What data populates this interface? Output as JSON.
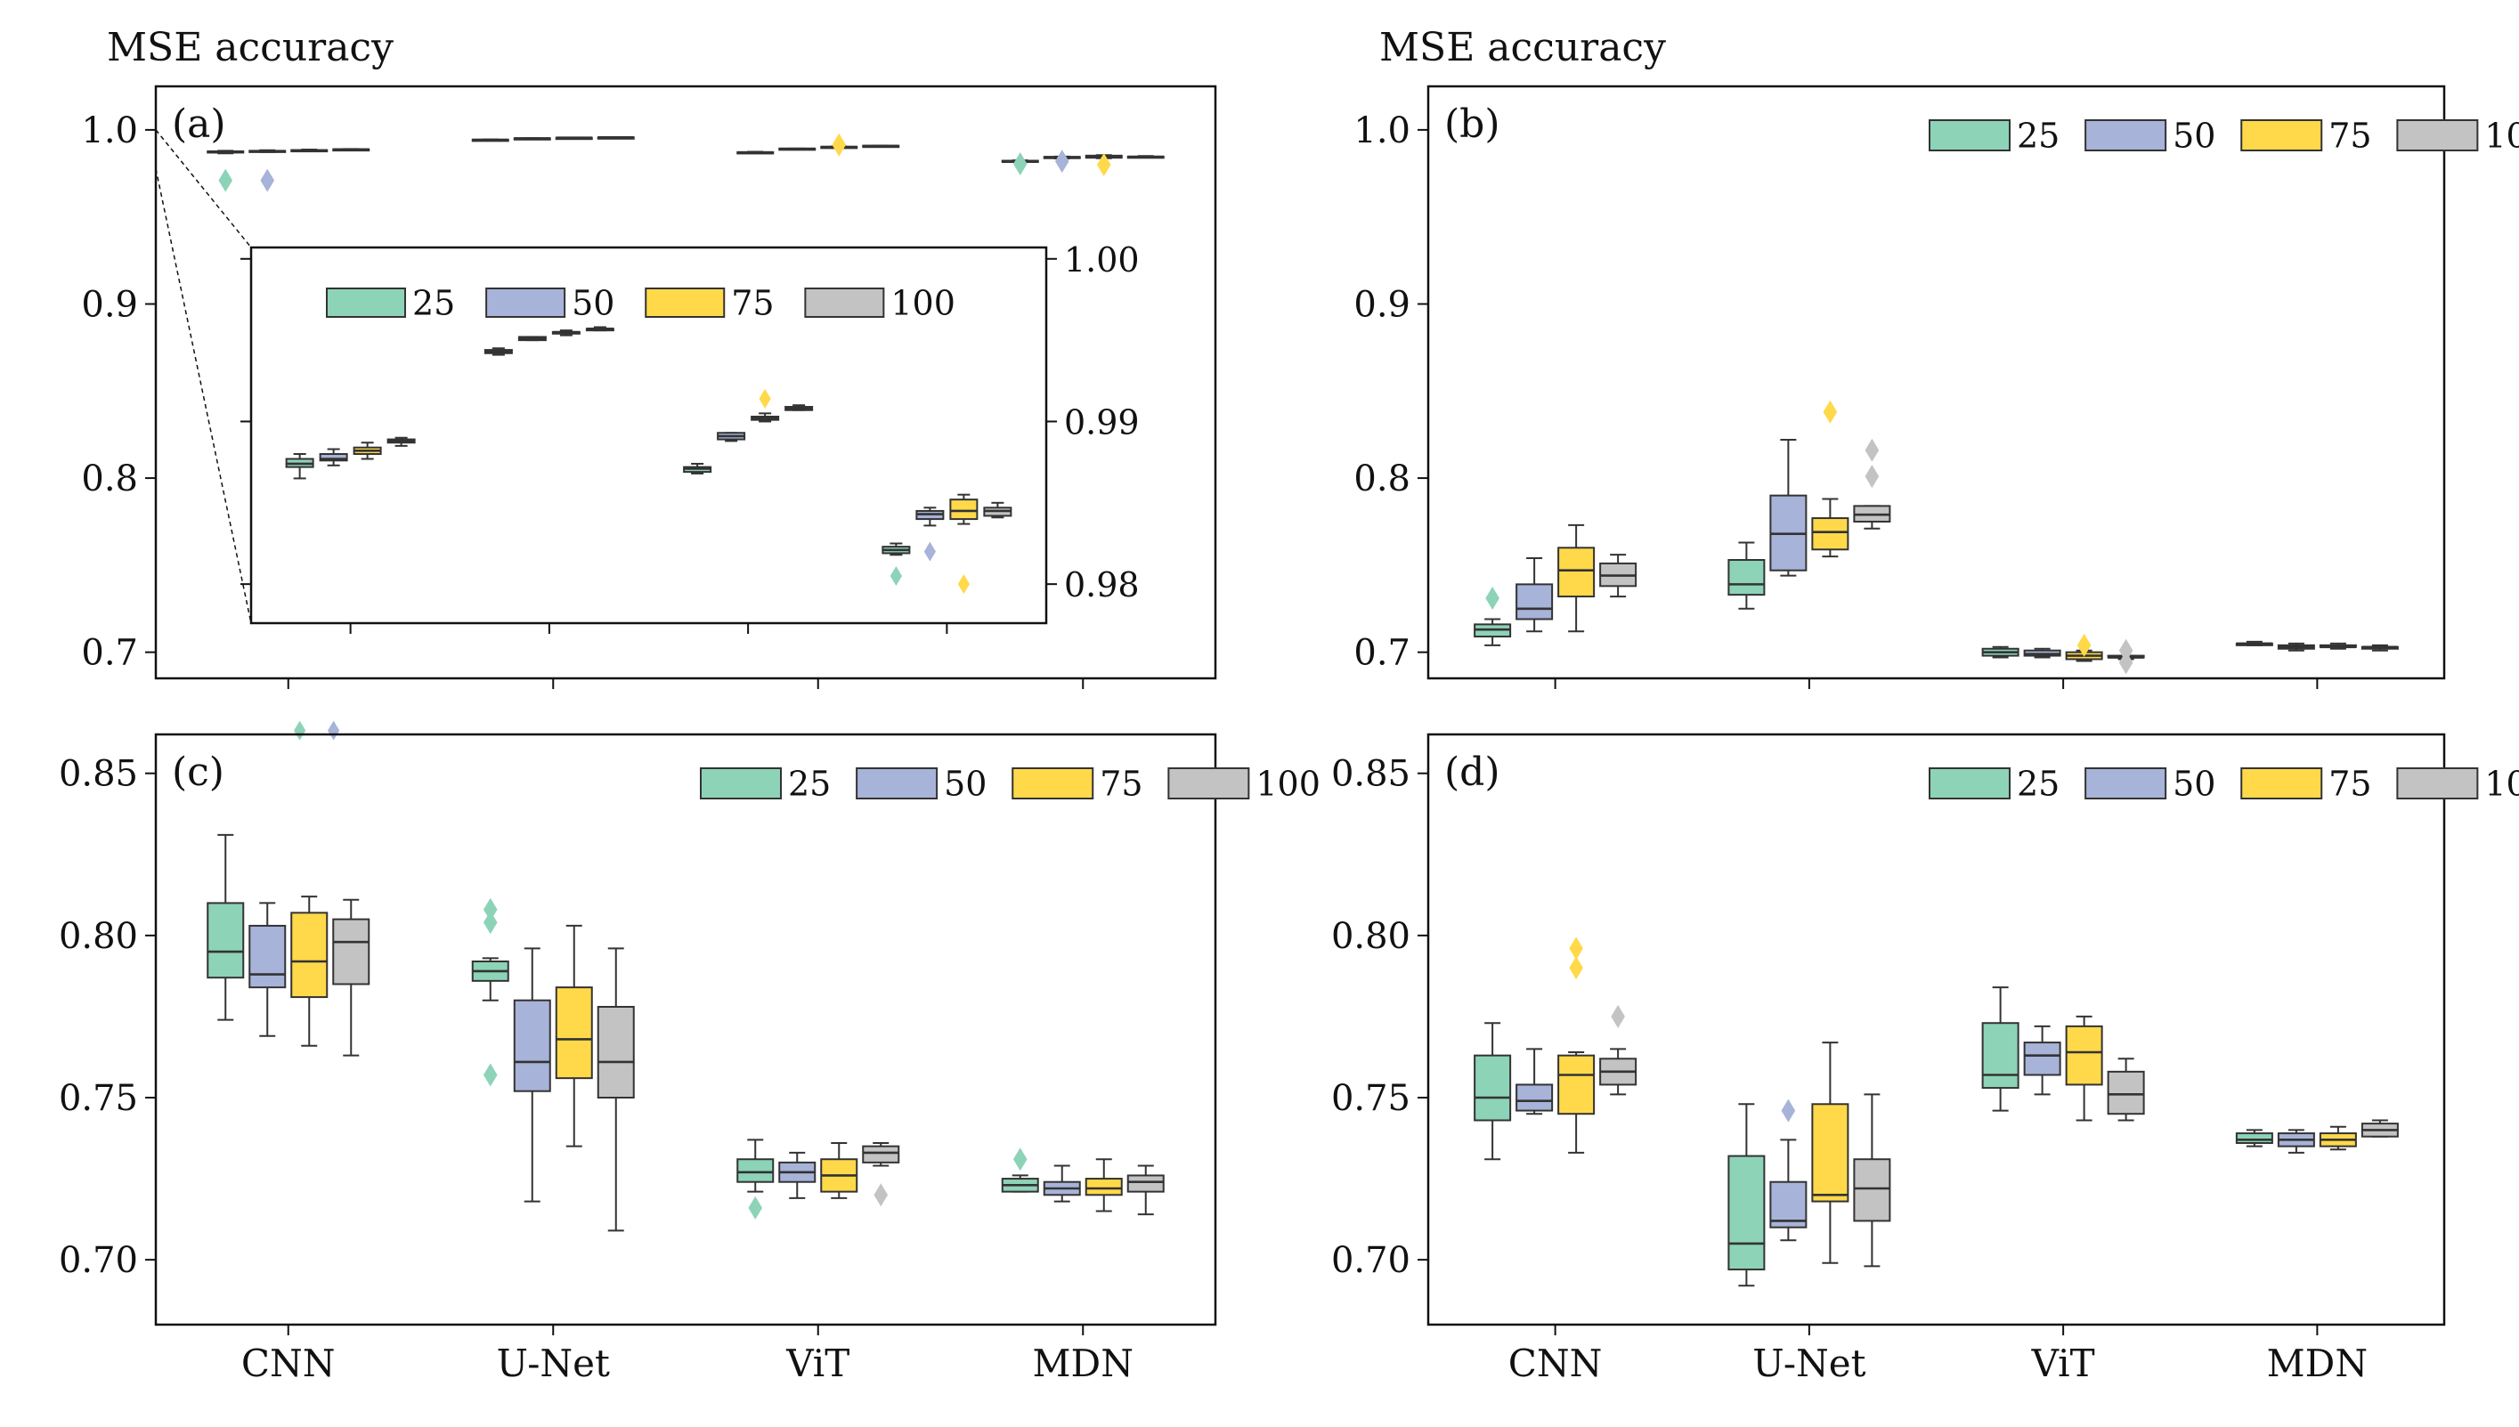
{
  "figure": {
    "ylabel": "MSE accuracy"
  },
  "legend_labels": [
    "25",
    "50",
    "75",
    "100"
  ],
  "colors": {
    "25": "#8dd3b8",
    "50": "#a7b3d9",
    "75": "#ffd94a",
    "100": "#c3c3c3",
    "edge": "#333333"
  },
  "chart_data": [
    {
      "id": "a",
      "panel_label": "(a)",
      "type": "box",
      "ylabel": "MSE accuracy",
      "ylim": [
        0.685,
        1.025
      ],
      "yticks": [
        0.7,
        0.8,
        0.9,
        1.0
      ],
      "ytick_labels": [
        "0.7",
        "0.8",
        "0.9",
        "1.0"
      ],
      "categories": [
        "CNN",
        "U-Net",
        "ViT",
        "MDN"
      ],
      "show_xticklabels": false,
      "legend": "inset",
      "series": [
        {
          "name": "25",
          "boxes": [
            {
              "whislo": 0.9865,
              "q1": 0.9872,
              "med": 0.9874,
              "q3": 0.9877,
              "whishi": 0.988,
              "fliers": [
                0.971
              ]
            },
            {
              "whislo": 0.9941,
              "q1": 0.9942,
              "med": 0.9943,
              "q3": 0.9944,
              "whishi": 0.9945,
              "fliers": []
            },
            {
              "whislo": 0.9868,
              "q1": 0.9869,
              "med": 0.9871,
              "q3": 0.9872,
              "whishi": 0.9874,
              "fliers": []
            },
            {
              "whislo": 0.9818,
              "q1": 0.9819,
              "med": 0.9821,
              "q3": 0.9823,
              "whishi": 0.9825,
              "fliers": [
                0.9805
              ]
            }
          ]
        },
        {
          "name": "50",
          "boxes": [
            {
              "whislo": 0.9873,
              "q1": 0.9876,
              "med": 0.9877,
              "q3": 0.988,
              "whishi": 0.9883,
              "fliers": [
                0.971
              ]
            },
            {
              "whislo": 0.995,
              "q1": 0.995,
              "med": 0.9951,
              "q3": 0.9952,
              "whishi": 0.9952,
              "fliers": []
            },
            {
              "whislo": 0.9888,
              "q1": 0.9889,
              "med": 0.9891,
              "q3": 0.9893,
              "whishi": 0.9893,
              "fliers": []
            },
            {
              "whislo": 0.9836,
              "q1": 0.984,
              "med": 0.9843,
              "q3": 0.9845,
              "whishi": 0.9847,
              "fliers": [
                0.982
              ]
            }
          ]
        },
        {
          "name": "75",
          "boxes": [
            {
              "whislo": 0.9877,
              "q1": 0.988,
              "med": 0.9882,
              "q3": 0.9884,
              "whishi": 0.9887,
              "fliers": []
            },
            {
              "whislo": 0.9953,
              "q1": 0.9954,
              "med": 0.9955,
              "q3": 0.9955,
              "whishi": 0.9956,
              "fliers": []
            },
            {
              "whislo": 0.99,
              "q1": 0.9901,
              "med": 0.9902,
              "q3": 0.9903,
              "whishi": 0.9905,
              "fliers": [
                0.9914
              ]
            },
            {
              "whislo": 0.9837,
              "q1": 0.984,
              "med": 0.9845,
              "q3": 0.9852,
              "whishi": 0.9855,
              "fliers": [
                0.98
              ]
            }
          ]
        },
        {
          "name": "100",
          "boxes": [
            {
              "whislo": 0.9885,
              "q1": 0.9887,
              "med": 0.9888,
              "q3": 0.9889,
              "whishi": 0.989,
              "fliers": []
            },
            {
              "whislo": 0.9956,
              "q1": 0.9956,
              "med": 0.9957,
              "q3": 0.9957,
              "whishi": 0.9958,
              "fliers": []
            },
            {
              "whislo": 0.9907,
              "q1": 0.9907,
              "med": 0.9908,
              "q3": 0.9909,
              "whishi": 0.991,
              "fliers": []
            },
            {
              "whislo": 0.9841,
              "q1": 0.9842,
              "med": 0.9845,
              "q3": 0.9847,
              "whishi": 0.985,
              "fliers": []
            }
          ]
        }
      ],
      "inset": {
        "ylim": [
          0.9776,
          1.0007
        ],
        "yticks": [
          0.98,
          0.99,
          1.0
        ],
        "ytick_labels": [
          "0.98",
          "0.99",
          "1.00"
        ],
        "ytick_side": "right",
        "zoom_from": 1.0,
        "zoom_to": 0.9776
      }
    },
    {
      "id": "b",
      "panel_label": "(b)",
      "type": "box",
      "ylabel": "MSE accuracy",
      "ylim": [
        0.685,
        1.025
      ],
      "yticks": [
        0.7,
        0.8,
        0.9,
        1.0
      ],
      "ytick_labels": [
        "0.7",
        "0.8",
        "0.9",
        "1.0"
      ],
      "categories": [
        "CNN",
        "U-Net",
        "ViT",
        "MDN"
      ],
      "show_xticklabels": false,
      "legend": "upper right",
      "series": [
        {
          "name": "25",
          "boxes": [
            {
              "whislo": 0.704,
              "q1": 0.709,
              "med": 0.713,
              "q3": 0.716,
              "whishi": 0.719,
              "fliers": [
                0.731
              ]
            },
            {
              "whislo": 0.725,
              "q1": 0.733,
              "med": 0.739,
              "q3": 0.753,
              "whishi": 0.763,
              "fliers": []
            },
            {
              "whislo": 0.697,
              "q1": 0.698,
              "med": 0.7,
              "q3": 0.702,
              "whishi": 0.703,
              "fliers": []
            },
            {
              "whislo": 0.704,
              "q1": 0.704,
              "med": 0.705,
              "q3": 0.705,
              "whishi": 0.706,
              "fliers": []
            }
          ]
        },
        {
          "name": "50",
          "boxes": [
            {
              "whislo": 0.712,
              "q1": 0.719,
              "med": 0.725,
              "q3": 0.739,
              "whishi": 0.754,
              "fliers": []
            },
            {
              "whislo": 0.744,
              "q1": 0.747,
              "med": 0.768,
              "q3": 0.79,
              "whishi": 0.822,
              "fliers": []
            },
            {
              "whislo": 0.697,
              "q1": 0.698,
              "med": 0.699,
              "q3": 0.701,
              "whishi": 0.702,
              "fliers": []
            },
            {
              "whislo": 0.701,
              "q1": 0.702,
              "med": 0.703,
              "q3": 0.704,
              "whishi": 0.705,
              "fliers": []
            }
          ]
        },
        {
          "name": "75",
          "boxes": [
            {
              "whislo": 0.712,
              "q1": 0.732,
              "med": 0.747,
              "q3": 0.76,
              "whishi": 0.773,
              "fliers": []
            },
            {
              "whislo": 0.755,
              "q1": 0.759,
              "med": 0.769,
              "q3": 0.777,
              "whishi": 0.788,
              "fliers": [
                0.838
              ]
            },
            {
              "whislo": 0.695,
              "q1": 0.696,
              "med": 0.698,
              "q3": 0.7,
              "whishi": 0.701,
              "fliers": [
                0.704
              ]
            },
            {
              "whislo": 0.702,
              "q1": 0.703,
              "med": 0.703,
              "q3": 0.704,
              "whishi": 0.705,
              "fliers": []
            }
          ]
        },
        {
          "name": "100",
          "boxes": [
            {
              "whislo": 0.732,
              "q1": 0.738,
              "med": 0.744,
              "q3": 0.751,
              "whishi": 0.756,
              "fliers": []
            },
            {
              "whislo": 0.771,
              "q1": 0.775,
              "med": 0.779,
              "q3": 0.784,
              "whishi": 0.784,
              "fliers": [
                0.801,
                0.816
              ]
            },
            {
              "whislo": 0.696,
              "q1": 0.697,
              "med": 0.697,
              "q3": 0.698,
              "whishi": 0.698,
              "fliers": [
                0.694,
                0.701
              ]
            },
            {
              "whislo": 0.701,
              "q1": 0.702,
              "med": 0.703,
              "q3": 0.703,
              "whishi": 0.704,
              "fliers": []
            }
          ]
        }
      ]
    },
    {
      "id": "c",
      "panel_label": "(c)",
      "type": "box",
      "ylabel": "",
      "ylim": [
        0.68,
        0.862
      ],
      "yticks": [
        0.7,
        0.75,
        0.8,
        0.85
      ],
      "ytick_labels": [
        "0.70",
        "0.75",
        "0.80",
        "0.85"
      ],
      "categories": [
        "CNN",
        "U-Net",
        "ViT",
        "MDN"
      ],
      "show_xticklabels": true,
      "legend": "upper right",
      "series": [
        {
          "name": "25",
          "boxes": [
            {
              "whislo": 0.774,
              "q1": 0.787,
              "med": 0.795,
              "q3": 0.81,
              "whishi": 0.831,
              "fliers": []
            },
            {
              "whislo": 0.78,
              "q1": 0.786,
              "med": 0.789,
              "q3": 0.792,
              "whishi": 0.793,
              "fliers": [
                0.757,
                0.804,
                0.808
              ]
            },
            {
              "whislo": 0.721,
              "q1": 0.724,
              "med": 0.727,
              "q3": 0.731,
              "whishi": 0.737,
              "fliers": [
                0.716
              ]
            },
            {
              "whislo": 0.721,
              "q1": 0.721,
              "med": 0.723,
              "q3": 0.725,
              "whishi": 0.726,
              "fliers": [
                0.731
              ]
            }
          ]
        },
        {
          "name": "50",
          "boxes": [
            {
              "whislo": 0.769,
              "q1": 0.784,
              "med": 0.788,
              "q3": 0.803,
              "whishi": 0.81,
              "fliers": []
            },
            {
              "whislo": 0.718,
              "q1": 0.752,
              "med": 0.761,
              "q3": 0.78,
              "whishi": 0.796,
              "fliers": []
            },
            {
              "whislo": 0.719,
              "q1": 0.724,
              "med": 0.727,
              "q3": 0.73,
              "whishi": 0.733,
              "fliers": []
            },
            {
              "whislo": 0.718,
              "q1": 0.72,
              "med": 0.722,
              "q3": 0.724,
              "whishi": 0.729,
              "fliers": []
            }
          ]
        },
        {
          "name": "75",
          "boxes": [
            {
              "whislo": 0.766,
              "q1": 0.781,
              "med": 0.792,
              "q3": 0.807,
              "whishi": 0.812,
              "fliers": []
            },
            {
              "whislo": 0.735,
              "q1": 0.756,
              "med": 0.768,
              "q3": 0.784,
              "whishi": 0.803,
              "fliers": []
            },
            {
              "whislo": 0.719,
              "q1": 0.721,
              "med": 0.726,
              "q3": 0.731,
              "whishi": 0.736,
              "fliers": []
            },
            {
              "whislo": 0.715,
              "q1": 0.72,
              "med": 0.722,
              "q3": 0.725,
              "whishi": 0.731,
              "fliers": []
            }
          ]
        },
        {
          "name": "100",
          "boxes": [
            {
              "whislo": 0.763,
              "q1": 0.785,
              "med": 0.798,
              "q3": 0.805,
              "whishi": 0.811,
              "fliers": []
            },
            {
              "whislo": 0.709,
              "q1": 0.75,
              "med": 0.761,
              "q3": 0.778,
              "whishi": 0.796,
              "fliers": []
            },
            {
              "whislo": 0.729,
              "q1": 0.73,
              "med": 0.733,
              "q3": 0.735,
              "whishi": 0.736,
              "fliers": [
                0.72
              ]
            },
            {
              "whislo": 0.714,
              "q1": 0.721,
              "med": 0.724,
              "q3": 0.726,
              "whishi": 0.729,
              "fliers": []
            }
          ]
        }
      ]
    },
    {
      "id": "d",
      "panel_label": "(d)",
      "type": "box",
      "ylabel": "",
      "ylim": [
        0.68,
        0.862
      ],
      "yticks": [
        0.7,
        0.75,
        0.8,
        0.85
      ],
      "ytick_labels": [
        "0.70",
        "0.75",
        "0.80",
        "0.85"
      ],
      "categories": [
        "CNN",
        "U-Net",
        "ViT",
        "MDN"
      ],
      "show_xticklabels": true,
      "legend": "upper right",
      "series": [
        {
          "name": "25",
          "boxes": [
            {
              "whislo": 0.731,
              "q1": 0.743,
              "med": 0.75,
              "q3": 0.763,
              "whishi": 0.773,
              "fliers": []
            },
            {
              "whislo": 0.692,
              "q1": 0.697,
              "med": 0.705,
              "q3": 0.732,
              "whishi": 0.748,
              "fliers": []
            },
            {
              "whislo": 0.746,
              "q1": 0.753,
              "med": 0.757,
              "q3": 0.773,
              "whishi": 0.784,
              "fliers": []
            },
            {
              "whislo": 0.735,
              "q1": 0.736,
              "med": 0.737,
              "q3": 0.739,
              "whishi": 0.74,
              "fliers": []
            }
          ]
        },
        {
          "name": "50",
          "boxes": [
            {
              "whislo": 0.745,
              "q1": 0.746,
              "med": 0.749,
              "q3": 0.754,
              "whishi": 0.765,
              "fliers": []
            },
            {
              "whislo": 0.706,
              "q1": 0.71,
              "med": 0.712,
              "q3": 0.724,
              "whishi": 0.737,
              "fliers": [
                0.746
              ]
            },
            {
              "whislo": 0.751,
              "q1": 0.757,
              "med": 0.763,
              "q3": 0.767,
              "whishi": 0.772,
              "fliers": []
            },
            {
              "whislo": 0.733,
              "q1": 0.735,
              "med": 0.737,
              "q3": 0.739,
              "whishi": 0.74,
              "fliers": []
            }
          ]
        },
        {
          "name": "75",
          "boxes": [
            {
              "whislo": 0.733,
              "q1": 0.745,
              "med": 0.757,
              "q3": 0.763,
              "whishi": 0.764,
              "fliers": [
                0.79,
                0.796
              ]
            },
            {
              "whislo": 0.699,
              "q1": 0.718,
              "med": 0.72,
              "q3": 0.748,
              "whishi": 0.767,
              "fliers": []
            },
            {
              "whislo": 0.743,
              "q1": 0.754,
              "med": 0.764,
              "q3": 0.772,
              "whishi": 0.775,
              "fliers": []
            },
            {
              "whislo": 0.734,
              "q1": 0.735,
              "med": 0.737,
              "q3": 0.739,
              "whishi": 0.741,
              "fliers": []
            }
          ]
        },
        {
          "name": "100",
          "boxes": [
            {
              "whislo": 0.751,
              "q1": 0.754,
              "med": 0.758,
              "q3": 0.762,
              "whishi": 0.765,
              "fliers": [
                0.775
              ]
            },
            {
              "whislo": 0.698,
              "q1": 0.712,
              "med": 0.722,
              "q3": 0.731,
              "whishi": 0.751,
              "fliers": []
            },
            {
              "whislo": 0.743,
              "q1": 0.745,
              "med": 0.751,
              "q3": 0.758,
              "whishi": 0.762,
              "fliers": []
            },
            {
              "whislo": 0.738,
              "q1": 0.738,
              "med": 0.74,
              "q3": 0.742,
              "whishi": 0.743,
              "fliers": []
            }
          ]
        }
      ]
    }
  ]
}
